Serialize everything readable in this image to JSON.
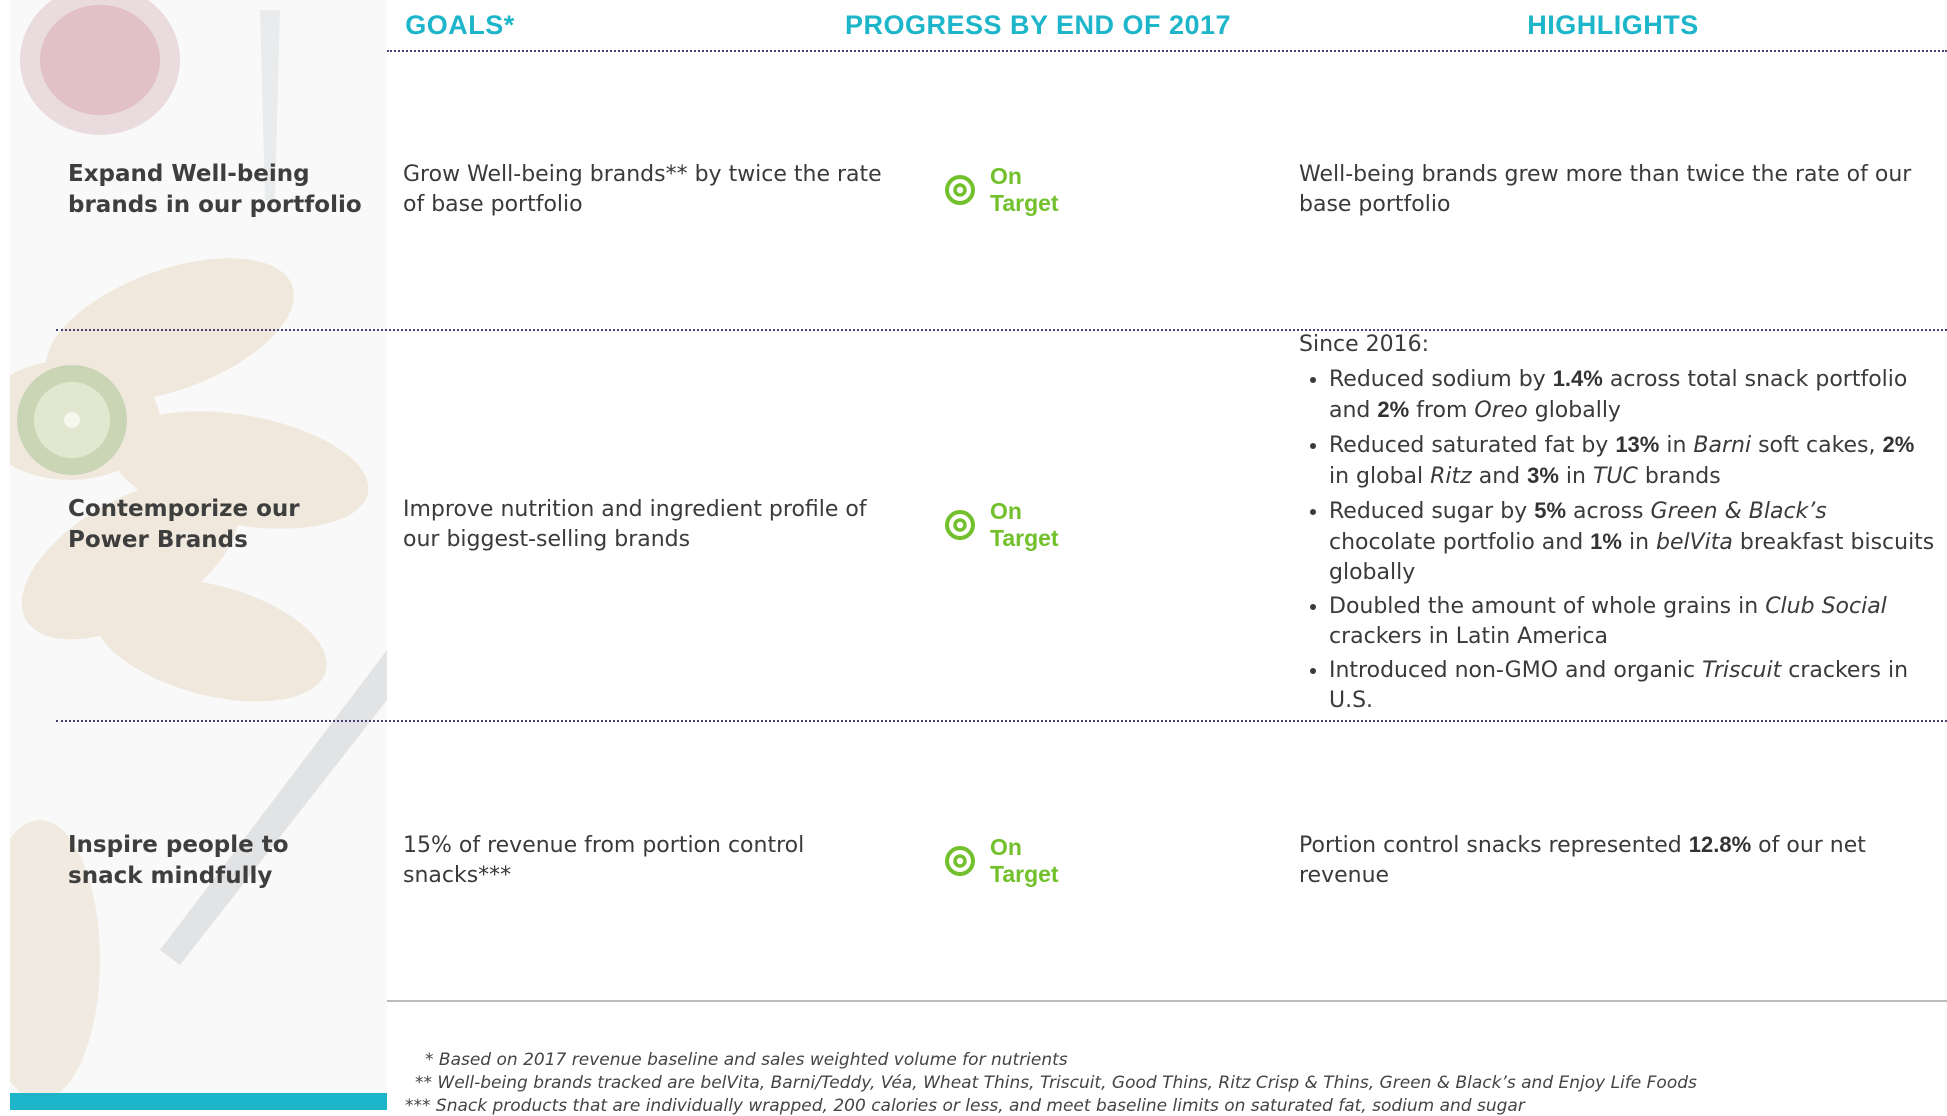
{
  "header": {
    "columns": [
      "GOALS*",
      "PROGRESS BY END OF 2017",
      "HIGHLIGHTS"
    ]
  },
  "rows": [
    {
      "label": "Expand Well-being brands in our portfolio",
      "goal": "Grow Well-being brands** by twice the rate of base portfolio",
      "progress": "On Target",
      "highlights": {
        "text": [
          "Well-being brands grew more than twice the rate of our base portfolio"
        ]
      }
    },
    {
      "label": "Contemporize our Power Brands",
      "goal": "Improve nutrition and ingredient profile of our biggest-selling brands",
      "progress": "On Target",
      "highlights": {
        "intro": "Since 2016:",
        "bullets": [
          [
            "Reduced sodium by ",
            {
              "b": "1.4%"
            },
            " across total snack portfolio and ",
            {
              "b": "2%"
            },
            " from ",
            {
              "i": "Oreo"
            },
            " globally"
          ],
          [
            "Reduced saturated fat by ",
            {
              "b": "13%"
            },
            " in ",
            {
              "i": "Barni"
            },
            " soft cakes, ",
            {
              "b": "2%"
            },
            " in global ",
            {
              "i": "Ritz"
            },
            " and ",
            {
              "b": "3%"
            },
            " in ",
            {
              "i": "TUC"
            },
            " brands"
          ],
          [
            "Reduced sugar by ",
            {
              "b": "5%"
            },
            " across ",
            {
              "i": "Green & Black’s"
            },
            " chocolate portfolio and ",
            {
              "b": "1%"
            },
            " in ",
            {
              "i": "belVita"
            },
            " breakfast biscuits globally"
          ],
          [
            "Doubled the amount of whole grains in ",
            {
              "i": "Club Social"
            },
            " crackers in Latin America"
          ],
          [
            "Introduced non-GMO and organic ",
            {
              "i": "Triscuit"
            },
            " crackers in U.S."
          ]
        ]
      }
    },
    {
      "label": "Inspire people to snack mindfully",
      "goal": "15% of revenue from portion control snacks***",
      "progress": "On Target",
      "highlights": {
        "text": [
          "Portion control snacks represented ",
          {
            "b": "12.8%"
          },
          " of our net revenue"
        ]
      }
    }
  ],
  "footnotes": [
    "* Based on 2017 revenue baseline and sales weighted volume for nutrients",
    "** Well-being brands tracked are belVita, Barni/Teddy, Véa, Wheat Thins, Triscuit, Good Thins, Ritz Crisp & Thins, Green & Black’s and Enjoy Life Foods",
    "*** Snack products that are individually wrapped, 200 calories or less, and meet baseline limits on saturated fat, sodium and sugar"
  ]
}
